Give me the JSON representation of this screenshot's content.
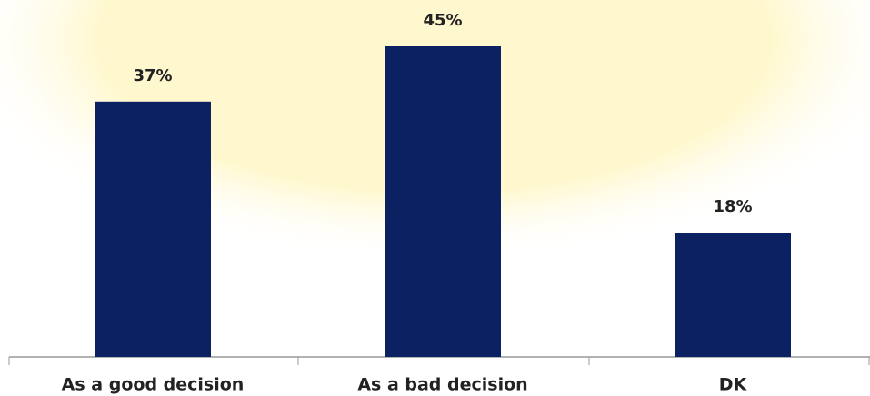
{
  "chart_data": {
    "type": "bar",
    "categories": [
      "As a good decision",
      "As a bad decision",
      "DK"
    ],
    "values": [
      37,
      45,
      18
    ],
    "value_labels": [
      "37%",
      "45%",
      "18%"
    ],
    "color": "#0b2161"
  }
}
